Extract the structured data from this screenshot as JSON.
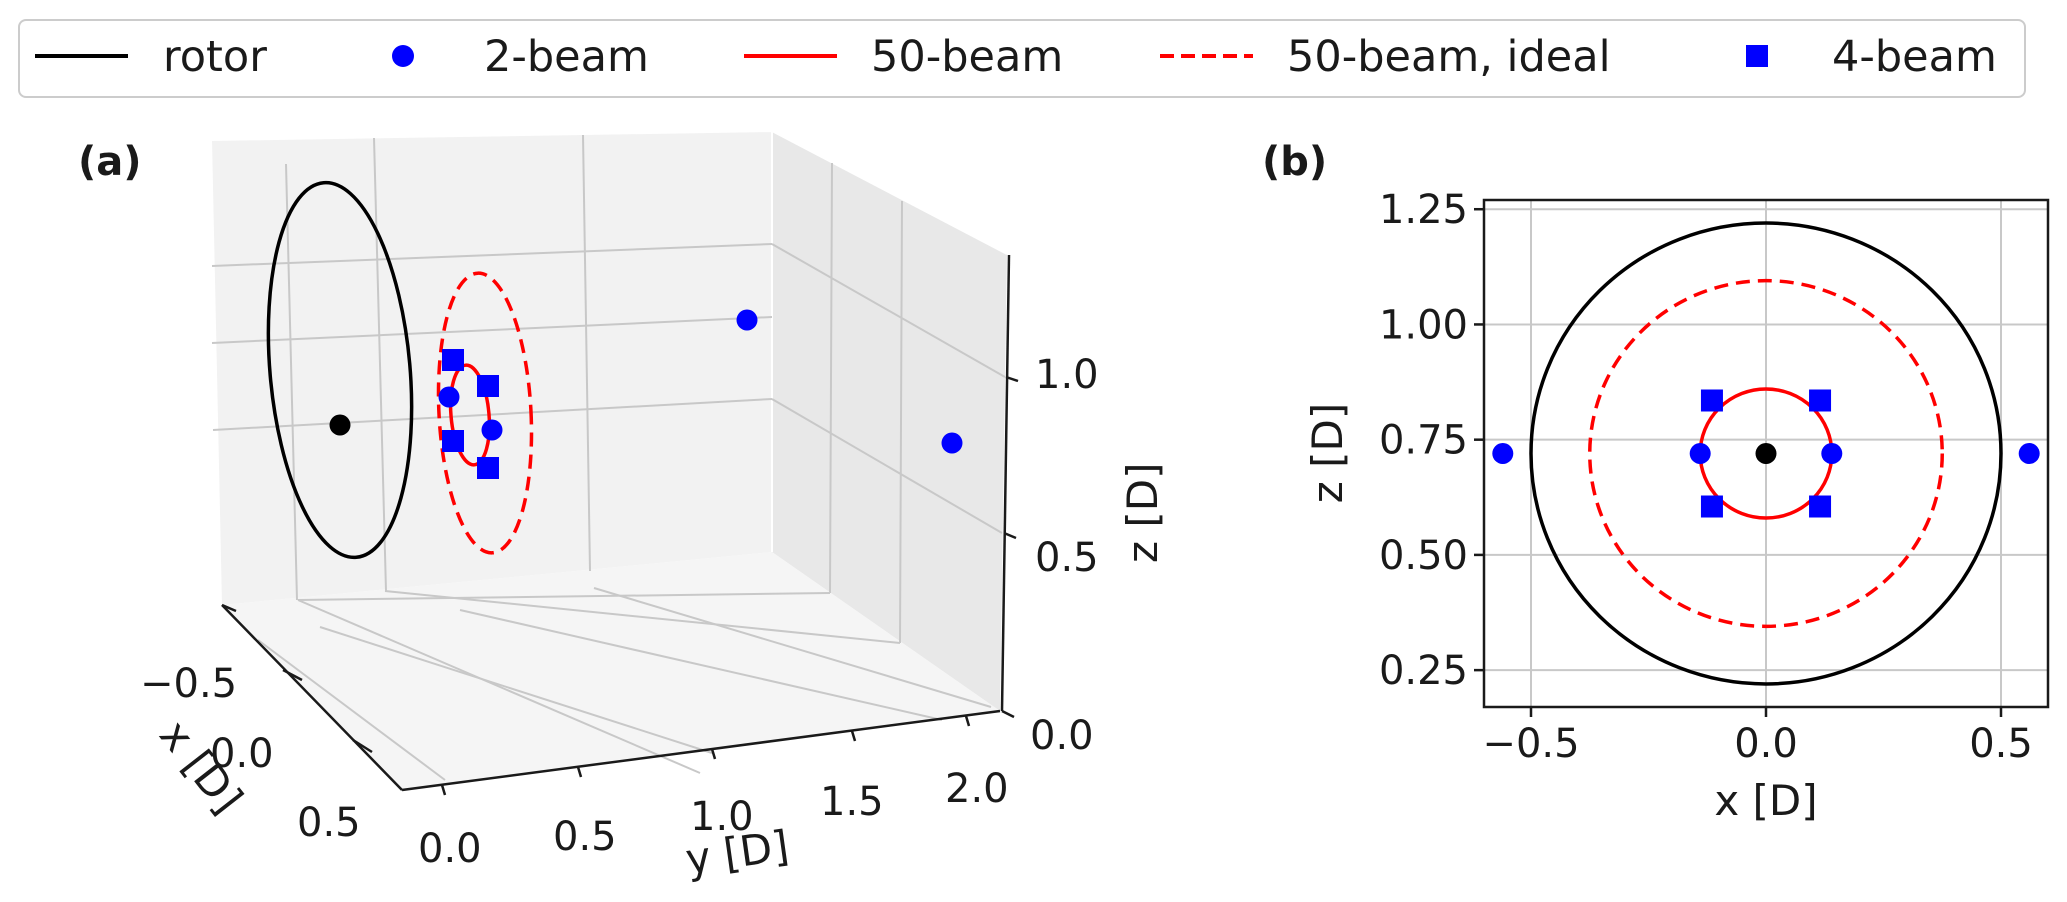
{
  "legend": {
    "items": [
      {
        "label": "rotor",
        "marker": "line",
        "color": "#000000"
      },
      {
        "label": "2-beam",
        "marker": "circle",
        "color": "#0000ff"
      },
      {
        "label": "50-beam",
        "marker": "line",
        "color": "#ff0000"
      },
      {
        "label": "50-beam, ideal",
        "marker": "dashed-line",
        "color": "#ff0000"
      },
      {
        "label": "4-beam",
        "marker": "square",
        "color": "#0000ff"
      }
    ],
    "placement": "top"
  },
  "chart_data": [
    {
      "panel": "(a)",
      "type": "scatter",
      "projection": "3d",
      "xlabel": "x [D]",
      "ylabel": "y [D]",
      "zlabel": "z [D]",
      "x_ticks": [
        "−0.5",
        "0.0",
        "0.5"
      ],
      "y_ticks": [
        "0.0",
        "0.5",
        "1.0",
        "1.5",
        "2.0"
      ],
      "z_ticks": [
        "0.0",
        "0.5",
        "1.0"
      ],
      "grid": true
    },
    {
      "panel": "(b)",
      "type": "scatter",
      "xlabel": "x [D]",
      "ylabel": "z [D]",
      "xlim": [
        -0.6,
        0.6
      ],
      "ylim": [
        0.17,
        1.27
      ],
      "x_ticks": [
        -0.5,
        0.0,
        0.5
      ],
      "x_tick_labels": [
        "−0.5",
        "0.0",
        "0.5"
      ],
      "y_ticks": [
        0.25,
        0.5,
        0.75,
        1.0,
        1.25
      ],
      "y_tick_labels": [
        "0.25",
        "0.50",
        "0.75",
        "1.00",
        "1.25"
      ],
      "grid": true,
      "series": [
        {
          "name": "rotor",
          "kind": "circle",
          "center": [
            0.0,
            0.72
          ],
          "radius": 0.5,
          "color": "#000000",
          "style": "solid"
        },
        {
          "name": "50-beam",
          "kind": "circle",
          "center": [
            0.0,
            0.72
          ],
          "radius": 0.14,
          "color": "#ff0000",
          "style": "solid"
        },
        {
          "name": "50-beam, ideal",
          "kind": "circle",
          "center": [
            0.0,
            0.72
          ],
          "radius": 0.375,
          "color": "#ff0000",
          "style": "dashed"
        },
        {
          "name": "2-beam",
          "kind": "points",
          "marker": "circle",
          "color": "#0000ff",
          "points": [
            [
              -0.56,
              0.72
            ],
            [
              -0.14,
              0.72
            ],
            [
              0.14,
              0.72
            ],
            [
              0.56,
              0.72
            ]
          ]
        },
        {
          "name": "4-beam",
          "kind": "points",
          "marker": "square",
          "color": "#0000ff",
          "points": [
            [
              -0.115,
              0.835
            ],
            [
              0.115,
              0.835
            ],
            [
              -0.115,
              0.605
            ],
            [
              0.115,
              0.605
            ]
          ]
        },
        {
          "name": "hub",
          "kind": "points",
          "marker": "circle",
          "color": "#000000",
          "points": [
            [
              0.0,
              0.72
            ]
          ]
        }
      ]
    }
  ]
}
